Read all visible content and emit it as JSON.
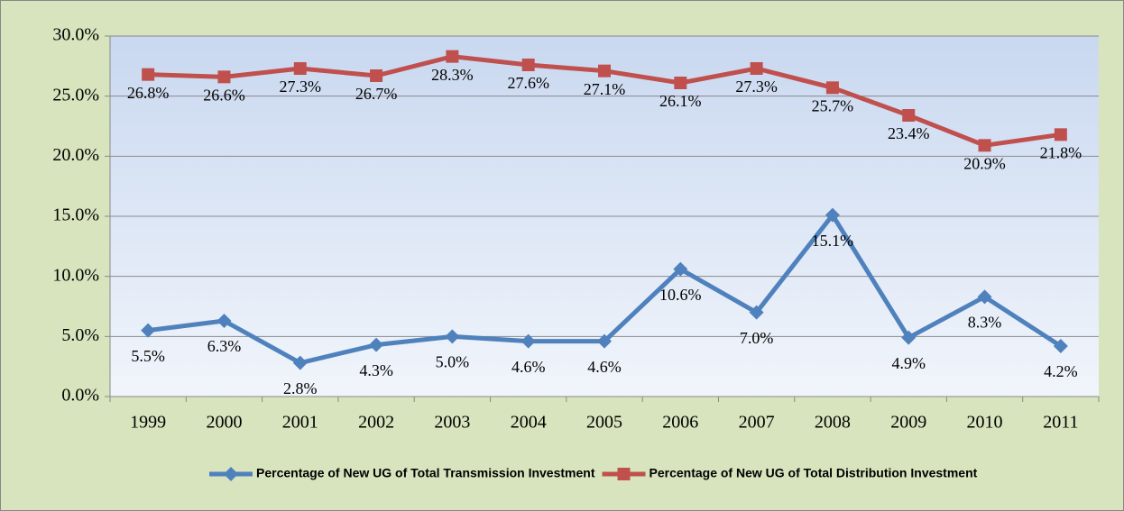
{
  "chart_data": {
    "type": "line",
    "categories": [
      "1999",
      "2000",
      "2001",
      "2002",
      "2003",
      "2004",
      "2005",
      "2006",
      "2007",
      "2008",
      "2009",
      "2010",
      "2011"
    ],
    "series": [
      {
        "name": "Percentage of New UG of Total Transmission Investment",
        "color": "#4f81bd",
        "values": [
          5.5,
          6.3,
          2.8,
          4.3,
          5.0,
          4.6,
          4.6,
          10.6,
          7.0,
          15.1,
          4.9,
          8.3,
          4.2
        ],
        "value_labels": [
          "5.5%",
          "6.3%",
          "2.8%",
          "4.3%",
          "5.0%",
          "4.6%",
          "4.6%",
          "10.6%",
          "7.0%",
          "15.1%",
          "4.9%",
          "8.3%",
          "4.2%"
        ]
      },
      {
        "name": "Percentage of New UG of Total Distribution Investment",
        "color": "#c0504d",
        "values": [
          26.8,
          26.6,
          27.3,
          26.7,
          28.3,
          27.6,
          27.1,
          26.1,
          27.3,
          25.7,
          23.4,
          20.9,
          21.8
        ],
        "value_labels": [
          "26.8%",
          "26.6%",
          "27.3%",
          "26.7%",
          "28.3%",
          "27.6%",
          "27.1%",
          "26.1%",
          "27.3%",
          "25.7%",
          "23.4%",
          "20.9%",
          "21.8%"
        ]
      }
    ],
    "ylim": [
      0,
      30
    ],
    "yticks": [
      {
        "value": 0,
        "label": "0.0%"
      },
      {
        "value": 5,
        "label": "5.0%"
      },
      {
        "value": 10,
        "label": "10.0%"
      },
      {
        "value": 15,
        "label": "15.0%"
      },
      {
        "value": 20,
        "label": "20.0%"
      },
      {
        "value": 25,
        "label": "25.0%"
      },
      {
        "value": 30,
        "label": "30.0%"
      }
    ],
    "grid": true,
    "legend": "bottom"
  }
}
